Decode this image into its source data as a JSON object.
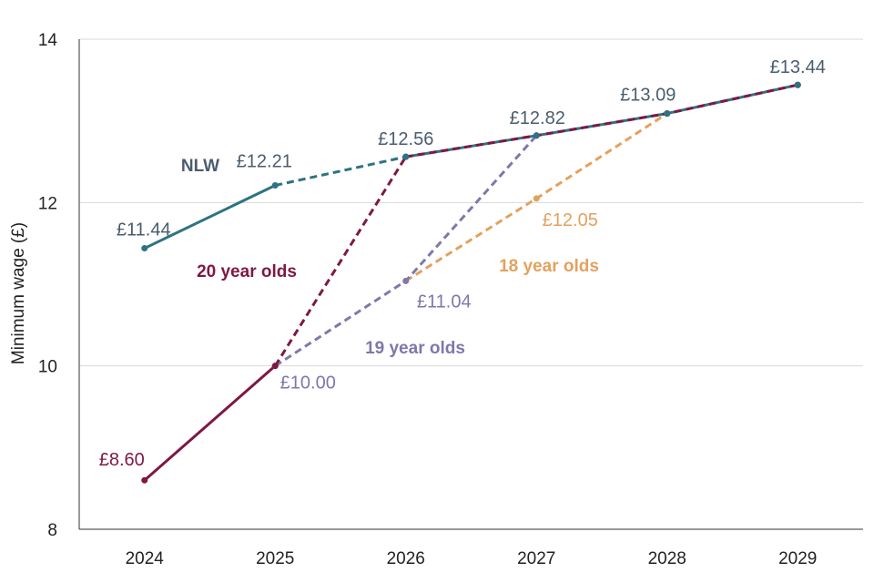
{
  "chart_data": {
    "type": "line",
    "title": "",
    "xlabel": "",
    "ylabel": "Minimum wage  (£)",
    "x": [
      "2024",
      "2025",
      "2026",
      "2027",
      "2028",
      "2029"
    ],
    "ylim": [
      8,
      14
    ],
    "yticks": [
      "8",
      "10",
      "12",
      "14"
    ],
    "grid": true,
    "series": [
      {
        "name": "NLW",
        "label": "NLW",
        "color": "#2e7382",
        "label_color": "#4a5d6e",
        "points": [
          {
            "x": "2024",
            "y": 11.44,
            "label": "£11.44"
          },
          {
            "x": "2025",
            "y": 12.21,
            "label": "£12.21"
          },
          {
            "x": "2026",
            "y": 12.56,
            "label": "£12.56"
          },
          {
            "x": "2027",
            "y": 12.82,
            "label": "£12.82"
          },
          {
            "x": "2028",
            "y": 13.09,
            "label": "£13.09"
          },
          {
            "x": "2029",
            "y": 13.44,
            "label": "£13.44"
          }
        ],
        "solid_segments": [
          [
            0,
            1
          ],
          [
            2,
            5
          ]
        ],
        "dashed_segments": [
          [
            1,
            2
          ]
        ]
      },
      {
        "name": "20 year olds",
        "label": "20 year olds",
        "color": "#7e1845",
        "label_color": "#7e1845",
        "points": [
          {
            "x": "2024",
            "y": 8.6,
            "label": "£8.60"
          },
          {
            "x": "2025",
            "y": 10.0
          },
          {
            "x": "2026",
            "y": 12.56
          },
          {
            "x": "2027",
            "y": 12.82
          },
          {
            "x": "2028",
            "y": 13.09
          },
          {
            "x": "2029",
            "y": 13.44
          }
        ],
        "solid_segments": [
          [
            0,
            1
          ]
        ],
        "dashed_segments": [
          [
            1,
            2
          ],
          [
            2,
            5
          ]
        ]
      },
      {
        "name": "19 year olds",
        "label": "19 year olds",
        "color": "#7e78ab",
        "label_color": "#7e78ab",
        "points": [
          {
            "x": "2025",
            "y": 10.0,
            "label": "£10.00"
          },
          {
            "x": "2026",
            "y": 11.04,
            "label": "£11.04"
          },
          {
            "x": "2027",
            "y": 12.82
          },
          {
            "x": "2028",
            "y": 13.09
          },
          {
            "x": "2029",
            "y": 13.44
          }
        ],
        "solid_segments": [],
        "dashed_segments": [
          [
            0,
            2
          ]
        ]
      },
      {
        "name": "18 year olds",
        "label": "18 year olds",
        "color": "#e3a15e",
        "label_color": "#e3a15e",
        "points": [
          {
            "x": "2026",
            "y": 11.04
          },
          {
            "x": "2027",
            "y": 12.05,
            "label": "£12.05"
          },
          {
            "x": "2028",
            "y": 13.09
          },
          {
            "x": "2029",
            "y": 13.44
          }
        ],
        "solid_segments": [],
        "dashed_segments": [
          [
            0,
            2
          ]
        ]
      }
    ]
  }
}
